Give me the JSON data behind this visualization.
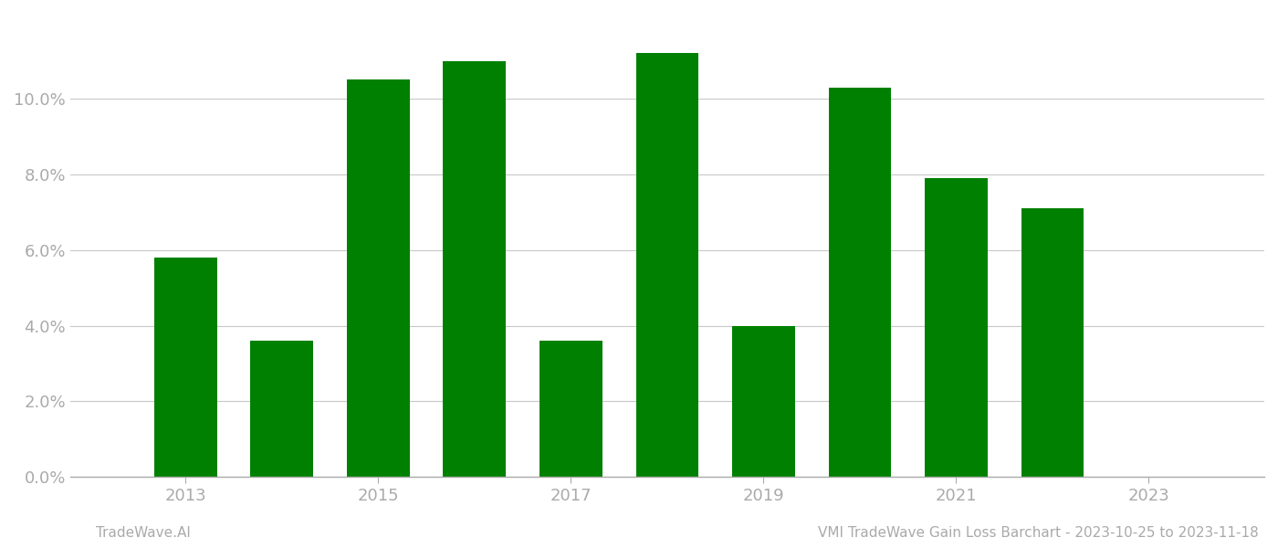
{
  "years": [
    2013,
    2014,
    2015,
    2016,
    2017,
    2018,
    2019,
    2020,
    2021,
    2022,
    2023
  ],
  "values": [
    0.058,
    0.036,
    0.105,
    0.11,
    0.036,
    0.112,
    0.04,
    0.103,
    0.079,
    0.071,
    null
  ],
  "bar_color": "#008000",
  "background_color": "#ffffff",
  "grid_color": "#c8c8c8",
  "axis_color": "#aaaaaa",
  "tick_label_color": "#aaaaaa",
  "ylim": [
    0.0,
    0.1225
  ],
  "yticks": [
    0.0,
    0.02,
    0.04,
    0.06,
    0.08,
    0.1
  ],
  "xticks": [
    2013,
    2015,
    2017,
    2019,
    2021,
    2023
  ],
  "xlim": [
    2011.8,
    2024.2
  ],
  "footer_left": "TradeWave.AI",
  "footer_right": "VMI TradeWave Gain Loss Barchart - 2023-10-25 to 2023-11-18",
  "footer_fontsize": 11,
  "tick_fontsize": 13,
  "bar_width": 0.65
}
